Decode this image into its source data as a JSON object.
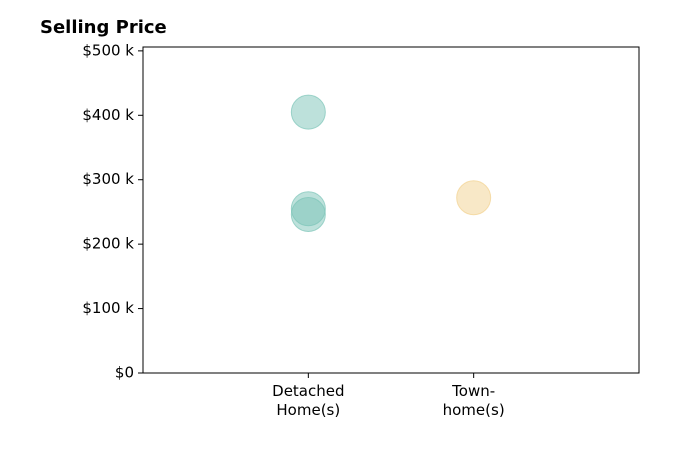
{
  "chart_data": {
    "type": "scatter",
    "title": "Selling Price",
    "categories": [
      "Detached\nHome(s)",
      "Town-\nhome(s)"
    ],
    "x": [
      "Detached\nHome(s)",
      "Detached\nHome(s)",
      "Detached\nHome(s)",
      "Town-\nhome(s)"
    ],
    "values": [
      405,
      255,
      246,
      272
    ],
    "colors": [
      "#7cc4b8",
      "#7cc4b8",
      "#7cc4b8",
      "#f2d28f"
    ],
    "ylim": [
      0,
      506
    ],
    "yticks": [
      {
        "value": 0,
        "label": "$0"
      },
      {
        "value": 100,
        "label": "$100 k"
      },
      {
        "value": 200,
        "label": "$200 k"
      },
      {
        "value": 300,
        "label": "$300 k"
      },
      {
        "value": 400,
        "label": "$400 k"
      },
      {
        "value": 500,
        "label": "$500 k"
      }
    ],
    "grid": false
  }
}
